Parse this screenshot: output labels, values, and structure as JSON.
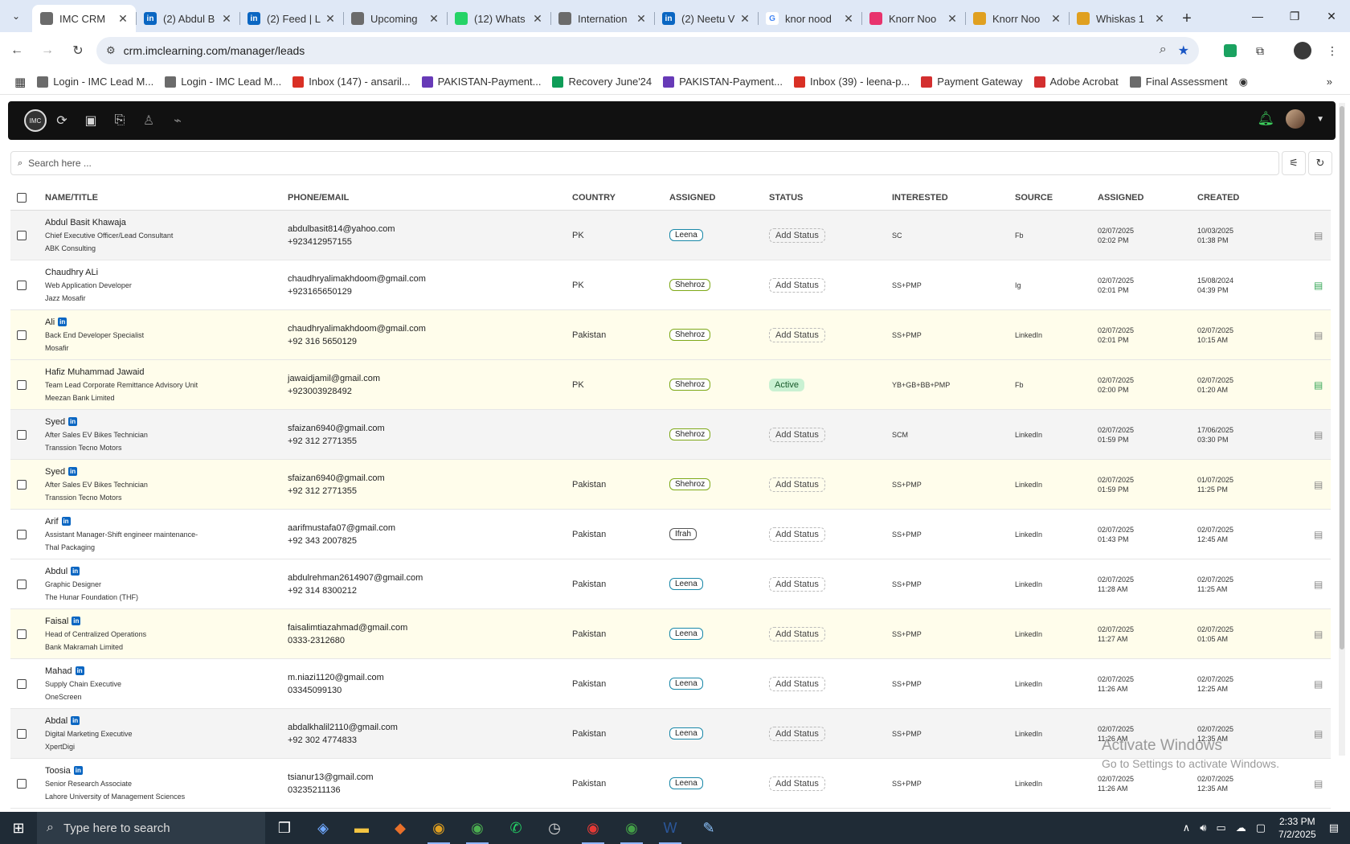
{
  "browser": {
    "tabs": [
      {
        "title": "IMC CRM",
        "favicon": "imc-icon",
        "color": "#6b6b6b",
        "active": true
      },
      {
        "title": "(2) Abdul B",
        "favicon": "linkedin-icon",
        "color": "#0a66c2"
      },
      {
        "title": "(2) Feed | L",
        "favicon": "linkedin-icon",
        "color": "#0a66c2"
      },
      {
        "title": "Upcoming",
        "favicon": "imc-icon",
        "color": "#6b6b6b"
      },
      {
        "title": "(12) Whats",
        "favicon": "whatsapp-icon",
        "color": "#25d366"
      },
      {
        "title": "Internation",
        "favicon": "imc-icon",
        "color": "#6b6b6b"
      },
      {
        "title": "(2) Neetu V",
        "favicon": "linkedin-icon",
        "color": "#0a66c2"
      },
      {
        "title": "knor nood",
        "favicon": "google-icon",
        "color": "#ffffff"
      },
      {
        "title": "Knorr Noo",
        "favicon": "knorr-icon",
        "color": "#e8336d"
      },
      {
        "title": "Knorr Noo",
        "favicon": "chrome-icon",
        "color": "#e0a020"
      },
      {
        "title": "Whiskas 1",
        "favicon": "chrome-icon",
        "color": "#e0a020"
      }
    ],
    "url": "crm.imclearning.com/manager/leads",
    "bookmarks": [
      {
        "label": "Login - IMC Lead M...",
        "icon": "imc-icon",
        "color": "#6b6b6b"
      },
      {
        "label": "Login - IMC Lead M...",
        "icon": "imc-icon",
        "color": "#6b6b6b"
      },
      {
        "label": "Inbox (147) - ansaril...",
        "icon": "gmail-icon",
        "color": "#d93025"
      },
      {
        "label": "PAKISTAN-Payment...",
        "icon": "form-icon",
        "color": "#673ab7"
      },
      {
        "label": "Recovery June'24",
        "icon": "sheets-icon",
        "color": "#0f9d58"
      },
      {
        "label": "PAKISTAN-Payment...",
        "icon": "form-icon",
        "color": "#673ab7"
      },
      {
        "label": "Inbox (39) - leena-p...",
        "icon": "gmail-icon",
        "color": "#d93025"
      },
      {
        "label": "Payment Gateway",
        "icon": "payment-icon",
        "color": "#d32f2f"
      },
      {
        "label": "Adobe Acrobat",
        "icon": "acrobat-icon",
        "color": "#d32f2f"
      },
      {
        "label": "Final Assessment",
        "icon": "imc-icon",
        "color": "#6b6b6b"
      }
    ]
  },
  "search": {
    "placeholder": "Search here ..."
  },
  "columns": {
    "name": "NAME/TITLE",
    "contact": "PHONE/EMAIL",
    "country": "COUNTRY",
    "assigned": "ASSIGNED",
    "status": "STATUS",
    "interested": "INTERESTED",
    "source": "SOURCE",
    "assigned_date": "ASSIGNED",
    "created": "CREATED"
  },
  "leads": [
    {
      "name": "Abdul Basit Khawaja",
      "linkedin": false,
      "title": "Chief Executive Officer/Lead Consultant",
      "company": "ABK Consulting",
      "email": "abdulbasit814@yahoo.com",
      "phone": "+923412957155",
      "country": "PK",
      "assigned": "Leena",
      "assigned_color": "blue",
      "status": "Add Status",
      "interested": "SC",
      "source": "Fb",
      "assigned_date": "02/07/2025",
      "assigned_time": "02:02 PM",
      "created_date": "10/03/2025",
      "created_time": "01:38 PM",
      "row": "grey",
      "doc": "grey"
    },
    {
      "name": "Chaudhry ALi",
      "linkedin": false,
      "title": "Web Application Developer",
      "company": "Jazz Mosafir",
      "email": "chaudhryalimakhdoom@gmail.com",
      "phone": "+923165650129",
      "country": "PK",
      "assigned": "Shehroz",
      "assigned_color": "green",
      "status": "Add Status",
      "interested": "SS+PMP",
      "source": "Ig",
      "assigned_date": "02/07/2025",
      "assigned_time": "02:01 PM",
      "created_date": "15/08/2024",
      "created_time": "04:39 PM",
      "row": "white",
      "doc": "green"
    },
    {
      "name": "Ali",
      "linkedin": true,
      "title": "Back End Developer Specialist",
      "company": "Mosafir",
      "email": "chaudhryalimakhdoom@gmail.com",
      "phone": "+92 316 5650129",
      "country": "Pakistan",
      "assigned": "Shehroz",
      "assigned_color": "green",
      "status": "Add Status",
      "interested": "SS+PMP",
      "source": "LinkedIn",
      "assigned_date": "02/07/2025",
      "assigned_time": "02:01 PM",
      "created_date": "02/07/2025",
      "created_time": "10:15 AM",
      "row": "yellow",
      "doc": "grey"
    },
    {
      "name": "Hafiz Muhammad Jawaid",
      "linkedin": false,
      "title": "Team Lead Corporate Remittance Advisory Unit",
      "company": "Meezan Bank Limited",
      "email": "jawaidjamil@gmail.com",
      "phone": "+923003928492",
      "country": "PK",
      "assigned": "Shehroz",
      "assigned_color": "green",
      "status": "Active",
      "interested": "YB+GB+BB+PMP",
      "source": "Fb",
      "assigned_date": "02/07/2025",
      "assigned_time": "02:00 PM",
      "created_date": "02/07/2025",
      "created_time": "01:20 AM",
      "row": "yellow",
      "doc": "green"
    },
    {
      "name": "Syed",
      "linkedin": true,
      "title": "After Sales EV Bikes Technician",
      "company": "Transsion Tecno Motors",
      "email": "sfaizan6940@gmail.com",
      "phone": "+92 312 2771355",
      "country": "",
      "assigned": "Shehroz",
      "assigned_color": "green",
      "status": "Add Status",
      "interested": "SCM",
      "source": "LinkedIn",
      "assigned_date": "02/07/2025",
      "assigned_time": "01:59 PM",
      "created_date": "17/06/2025",
      "created_time": "03:30 PM",
      "row": "grey",
      "doc": "grey"
    },
    {
      "name": "Syed",
      "linkedin": true,
      "title": "After Sales EV Bikes Technician",
      "company": "Transsion Tecno Motors",
      "email": "sfaizan6940@gmail.com",
      "phone": "+92 312 2771355",
      "country": "Pakistan",
      "assigned": "Shehroz",
      "assigned_color": "green",
      "status": "Add Status",
      "interested": "SS+PMP",
      "source": "LinkedIn",
      "assigned_date": "02/07/2025",
      "assigned_time": "01:59 PM",
      "created_date": "01/07/2025",
      "created_time": "11:25 PM",
      "row": "yellow",
      "doc": "grey"
    },
    {
      "name": "Arif",
      "linkedin": true,
      "title": "Assistant Manager-Shift engineer maintenance-",
      "company": "Thal Packaging",
      "email": "aarifmustafa07@gmail.com",
      "phone": "+92 343 2007825",
      "country": "Pakistan",
      "assigned": "Ifrah",
      "assigned_color": "dark",
      "status": "Add Status",
      "interested": "SS+PMP",
      "source": "LinkedIn",
      "assigned_date": "02/07/2025",
      "assigned_time": "01:43 PM",
      "created_date": "02/07/2025",
      "created_time": "12:45 AM",
      "row": "white",
      "doc": "grey"
    },
    {
      "name": "Abdul",
      "linkedin": true,
      "title": "Graphic Designer",
      "company": "The Hunar Foundation (THF)",
      "email": "abdulrehman2614907@gmail.com",
      "phone": "+92 314 8300212",
      "country": "Pakistan",
      "assigned": "Leena",
      "assigned_color": "blue",
      "status": "Add Status",
      "interested": "SS+PMP",
      "source": "LinkedIn",
      "assigned_date": "02/07/2025",
      "assigned_time": "11:28 AM",
      "created_date": "02/07/2025",
      "created_time": "11:25 AM",
      "row": "white",
      "doc": "grey"
    },
    {
      "name": "Faisal",
      "linkedin": true,
      "title": "Head of Centralized Operations",
      "company": "Bank Makramah Limited",
      "email": "faisalimtiazahmad@gmail.com",
      "phone": "0333-2312680",
      "country": "Pakistan",
      "assigned": "Leena",
      "assigned_color": "blue",
      "status": "Add Status",
      "interested": "SS+PMP",
      "source": "LinkedIn",
      "assigned_date": "02/07/2025",
      "assigned_time": "11:27 AM",
      "created_date": "02/07/2025",
      "created_time": "01:05 AM",
      "row": "yellow",
      "doc": "grey"
    },
    {
      "name": "Mahad",
      "linkedin": true,
      "title": "Supply Chain Executive",
      "company": "OneScreen",
      "email": "m.niazi1120@gmail.com",
      "phone": "03345099130",
      "country": "Pakistan",
      "assigned": "Leena",
      "assigned_color": "blue",
      "status": "Add Status",
      "interested": "SS+PMP",
      "source": "LinkedIn",
      "assigned_date": "02/07/2025",
      "assigned_time": "11:26 AM",
      "created_date": "02/07/2025",
      "created_time": "12:25 AM",
      "row": "white",
      "doc": "grey"
    },
    {
      "name": "Abdal",
      "linkedin": true,
      "title": "Digital Marketing Executive",
      "company": "XpertDigi",
      "email": "abdalkhalil2110@gmail.com",
      "phone": "+92 302 4774833",
      "country": "Pakistan",
      "assigned": "Leena",
      "assigned_color": "blue",
      "status": "Add Status",
      "interested": "SS+PMP",
      "source": "LinkedIn",
      "assigned_date": "02/07/2025",
      "assigned_time": "11:26 AM",
      "created_date": "02/07/2025",
      "created_time": "12:35 AM",
      "row": "grey",
      "doc": "grey"
    },
    {
      "name": "Toosia",
      "linkedin": true,
      "title": "Senior Research Associate",
      "company": "Lahore University of Management Sciences",
      "email": "tsianur13@gmail.com",
      "phone": "03235211136",
      "country": "Pakistan",
      "assigned": "Leena",
      "assigned_color": "blue",
      "status": "Add Status",
      "interested": "SS+PMP",
      "source": "LinkedIn",
      "assigned_date": "02/07/2025",
      "assigned_time": "11:26 AM",
      "created_date": "02/07/2025",
      "created_time": "12:35 AM",
      "row": "white",
      "doc": "grey"
    }
  ],
  "watermark": {
    "line1": "Activate Windows",
    "line2": "Go to Settings to activate Windows."
  },
  "taskbar": {
    "search_placeholder": "Type here to search",
    "time": "2:33 PM",
    "date": "7/2/2025"
  }
}
